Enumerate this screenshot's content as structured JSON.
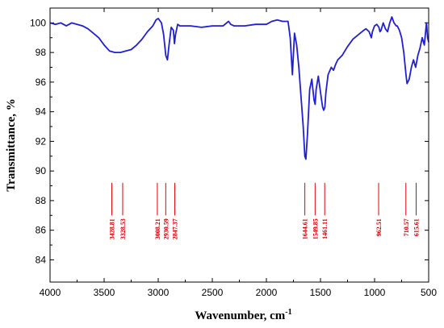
{
  "chart_data": {
    "type": "line",
    "xlabel": "Wavenumber, cm",
    "xlabel_superscript": "-1",
    "ylabel": "Transmittance, %",
    "xlim": [
      4000,
      500
    ],
    "ylim": [
      82.5,
      101
    ],
    "x_reversed": true,
    "x_ticks": [
      "4000",
      "3500",
      "3000",
      "2500",
      "2000",
      "1500",
      "1000",
      "500"
    ],
    "y_ticks": [
      "84",
      "86",
      "88",
      "90",
      "92",
      "94",
      "96",
      "98",
      "100"
    ],
    "grid": false,
    "line_color": "#1f1fd6",
    "marker_color": "#e00000",
    "series": [
      {
        "x": [
          4000,
          3950,
          3900,
          3850,
          3800,
          3750,
          3700,
          3650,
          3600,
          3550,
          3500,
          3450,
          3400,
          3350,
          3300,
          3250,
          3200,
          3150,
          3100,
          3050,
          3020,
          3000,
          2970,
          2950,
          2930,
          2915,
          2900,
          2880,
          2860,
          2850,
          2840,
          2820,
          2800,
          2750,
          2700,
          2600,
          2500,
          2400,
          2350,
          2330,
          2300,
          2200,
          2100,
          2000,
          1950,
          1900,
          1850,
          1800,
          1780,
          1760,
          1740,
          1720,
          1700,
          1680,
          1660,
          1645,
          1635,
          1620,
          1600,
          1580,
          1570,
          1560,
          1549,
          1540,
          1520,
          1505,
          1490,
          1480,
          1470,
          1460,
          1450,
          1430,
          1400,
          1380,
          1360,
          1340,
          1300,
          1250,
          1200,
          1150,
          1100,
          1080,
          1050,
          1030,
          1020,
          1000,
          980,
          960,
          950,
          940,
          920,
          900,
          880,
          860,
          840,
          820,
          800,
          790,
          770,
          750,
          730,
          710,
          700,
          680,
          660,
          640,
          620,
          600,
          580,
          560,
          540,
          520,
          510,
          500
        ],
        "y": [
          100.0,
          99.9,
          100.0,
          99.8,
          100.0,
          99.9,
          99.8,
          99.6,
          99.3,
          99.0,
          98.5,
          98.1,
          98.0,
          98.0,
          98.1,
          98.2,
          98.5,
          98.9,
          99.4,
          99.8,
          100.2,
          100.3,
          100.0,
          99.2,
          97.8,
          97.5,
          98.5,
          99.7,
          99.5,
          98.6,
          99.2,
          99.9,
          99.8,
          99.8,
          99.8,
          99.7,
          99.8,
          99.8,
          100.1,
          99.9,
          99.8,
          99.8,
          99.9,
          99.9,
          100.1,
          100.2,
          100.1,
          100.1,
          99.0,
          96.5,
          99.3,
          98.5,
          97.0,
          95.0,
          93.0,
          91.0,
          90.8,
          92.5,
          95.5,
          96.2,
          95.5,
          94.8,
          94.5,
          95.5,
          96.4,
          95.6,
          94.8,
          94.3,
          94.1,
          94.3,
          95.3,
          96.5,
          97.0,
          96.8,
          97.2,
          97.5,
          97.8,
          98.4,
          98.9,
          99.2,
          99.5,
          99.6,
          99.4,
          99.0,
          99.4,
          99.8,
          99.9,
          99.7,
          99.4,
          99.5,
          100.0,
          99.6,
          99.4,
          100.0,
          100.4,
          100.0,
          99.8,
          99.8,
          99.5,
          99.0,
          98.0,
          96.5,
          95.9,
          96.2,
          97.0,
          97.5,
          97.0,
          97.8,
          98.3,
          99.0,
          98.5,
          100.0,
          99.0,
          98.7
        ]
      }
    ],
    "peaks": [
      {
        "x": 3428.81,
        "label": "3428.81"
      },
      {
        "x": 3328.53,
        "label": "3328.53"
      },
      {
        "x": 3008.21,
        "label": "3008.21"
      },
      {
        "x": 2930.59,
        "label": "2930.59"
      },
      {
        "x": 2847.37,
        "label": "2847.37"
      },
      {
        "x": 1644.61,
        "label": "1644.61"
      },
      {
        "x": 1549.85,
        "label": "1549.85"
      },
      {
        "x": 1461.11,
        "label": "1461.11"
      },
      {
        "x": 962.51,
        "label": "962.51"
      },
      {
        "x": 710.57,
        "label": "710.57"
      },
      {
        "x": 615.61,
        "label": "615.61"
      }
    ],
    "peak_marker_range": [
      87.0,
      89.2
    ]
  }
}
